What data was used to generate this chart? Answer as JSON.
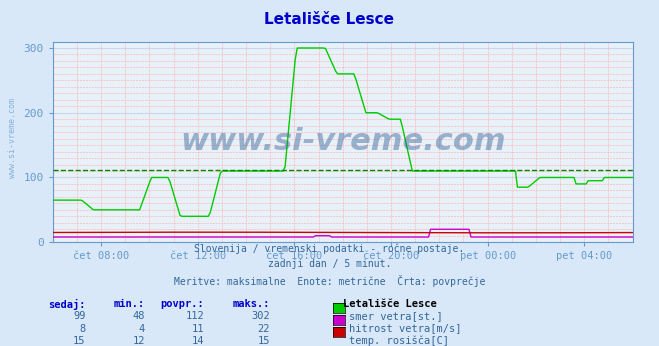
{
  "title": "Letališče Lesce",
  "bg_color": "#d8e8f8",
  "plot_bg_color": "#e8f0f8",
  "grid_color_major": "#c8d8e8",
  "grid_color_minor": "#ffcccc",
  "title_color": "#0000cc",
  "axis_color": "#6699cc",
  "text_color": "#336699",
  "ylim": [
    0,
    310
  ],
  "yticks": [
    0,
    100,
    200,
    300
  ],
  "xlabel_color": "#336699",
  "xtick_labels": [
    "čet 08:00",
    "čet 12:00",
    "čet 16:00",
    "čet 20:00",
    "pet 00:00",
    "pet 04:00"
  ],
  "subtitle_lines": [
    "Slovenija / vremenski podatki - ročne postaje.",
    "zadnji dan / 5 minut.",
    "Meritve: maksimalne  Enote: metrične  Črta: povprečje"
  ],
  "legend_title": "Letališče Lesce",
  "legend_items": [
    {
      "label": "smer vetra[st.]",
      "color": "#00cc00"
    },
    {
      "label": "hitrost vetra[m/s]",
      "color": "#cc00cc"
    },
    {
      "label": "temp. rosišča[C]",
      "color": "#cc0000"
    }
  ],
  "table_headers": [
    "sedaj:",
    "min.:",
    "povpr.:",
    "maks.:"
  ],
  "table_data": [
    [
      99,
      48,
      112,
      302
    ],
    [
      8,
      4,
      11,
      22
    ],
    [
      15,
      12,
      14,
      15
    ]
  ],
  "avg_line_color": "#00aa00",
  "avg_line_value": 112,
  "watermark": "www.si-vreme.com",
  "watermark_color": "#336699"
}
